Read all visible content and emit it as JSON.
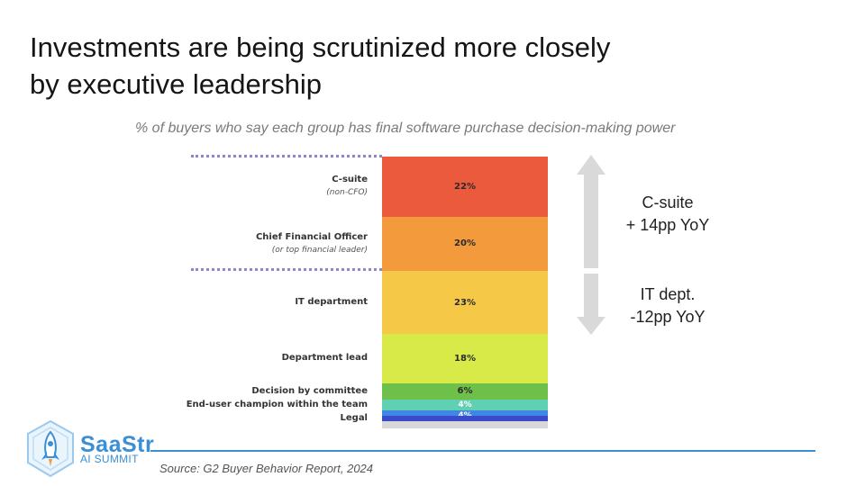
{
  "slide": {
    "title_line1": "Investments are being scrutinized more closely",
    "title_line2": "by executive leadership",
    "subtitle": "% of buyers who say each group has final software purchase decision-making power",
    "source": "Source: G2 Buyer Behavior Report, 2024"
  },
  "annotations": {
    "csuite_line1": "C-suite",
    "csuite_line2": "+ 14pp YoY",
    "it_line1": "IT dept.",
    "it_line2": "-12pp YoY",
    "arrow_color": "#d9d9d9"
  },
  "logo": {
    "name": "SaaStr",
    "sub": "AI SUMMIT",
    "color": "#3b8fd6",
    "icon": "rocket-icon"
  },
  "chart_data": {
    "type": "bar",
    "stacked": true,
    "title": "% of buyers who say each group has final software purchase decision-making power",
    "categories": [
      "C-suite",
      "Chief Financial Officer",
      "IT department",
      "Department lead",
      "Decision by committee",
      "End-user champion within the team",
      "Legal"
    ],
    "category_notes": [
      "(non-CFO)",
      "(or top financial leader)",
      "",
      "",
      "",
      "",
      ""
    ],
    "values": [
      22,
      20,
      23,
      18,
      6,
      4,
      4
    ],
    "value_labels": [
      "22%",
      "20%",
      "23%",
      "18%",
      "6%",
      "4%",
      "4%"
    ],
    "colors": [
      "#ec5a3d",
      "#f29a3c",
      "#f5c947",
      "#d7ea48",
      "#6fbf4b",
      "#5fd0b2",
      "#3f86e6"
    ],
    "bottom_strip_color": "#3a4ac8",
    "grid": false,
    "legend": "none"
  }
}
